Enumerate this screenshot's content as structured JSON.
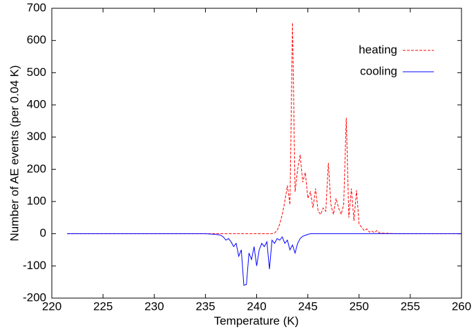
{
  "chart_data": {
    "type": "line",
    "x_label": "Temperature (K)",
    "y_label": "Number of AE events (per 0.04 K)",
    "x": [
      221.5,
      230,
      234,
      235,
      236,
      236.25,
      236.5,
      236.75,
      237,
      237.25,
      237.5,
      237.75,
      238,
      238.25,
      238.5,
      238.75,
      239,
      239.25,
      239.5,
      239.75,
      240,
      240.25,
      240.5,
      240.75,
      241,
      241.25,
      241.5,
      241.75,
      242,
      242.25,
      242.5,
      242.75,
      243,
      243.25,
      243.5,
      243.75,
      244,
      244.25,
      244.5,
      244.75,
      245,
      245.25,
      245.5,
      245.75,
      246,
      246.25,
      246.5,
      246.75,
      247,
      247.25,
      247.5,
      247.75,
      248,
      248.25,
      248.5,
      248.75,
      249,
      249.25,
      249.5,
      249.75,
      250,
      250.25,
      250.5,
      250.75,
      251,
      251.25,
      251.5,
      251.75,
      252,
      254,
      257,
      260
    ],
    "series": [
      {
        "name": "heating",
        "color": "#ff0000",
        "line_style": "dashed",
        "values": [
          0,
          0,
          0,
          0,
          0,
          0,
          0,
          0,
          0,
          0,
          0,
          0,
          0,
          0,
          0,
          0,
          0,
          0,
          0,
          0,
          0,
          0,
          0,
          0,
          0,
          0,
          0,
          2,
          10,
          30,
          60,
          100,
          150,
          90,
          655,
          130,
          200,
          245,
          160,
          190,
          110,
          130,
          80,
          140,
          70,
          60,
          80,
          70,
          220,
          90,
          60,
          110,
          80,
          60,
          90,
          360,
          50,
          140,
          40,
          135,
          30,
          20,
          10,
          15,
          5,
          8,
          3,
          10,
          2,
          0,
          0,
          0
        ]
      },
      {
        "name": "cooling",
        "color": "#0000ff",
        "line_style": "solid",
        "values": [
          0,
          0,
          0,
          0,
          -2,
          -3,
          -5,
          -10,
          -20,
          -15,
          -25,
          -40,
          -30,
          -70,
          -50,
          -160,
          -158,
          -60,
          -80,
          -40,
          -100,
          -50,
          -30,
          -40,
          -25,
          -110,
          -20,
          -30,
          -15,
          -20,
          -10,
          -30,
          -20,
          -50,
          -35,
          -60,
          -30,
          -15,
          -8,
          -5,
          -2,
          0,
          0,
          0,
          0,
          0,
          0,
          0,
          0,
          0,
          0,
          0,
          0,
          0,
          0,
          0,
          0,
          0,
          0,
          0,
          0,
          0,
          0,
          0,
          0,
          0,
          0,
          0,
          0,
          0,
          0,
          0
        ]
      }
    ],
    "xlim": [
      220,
      260
    ],
    "xticks": [
      220,
      225,
      230,
      235,
      240,
      245,
      250,
      255,
      260
    ],
    "ylim": [
      -200,
      700
    ],
    "yticks": [
      -200,
      -100,
      0,
      100,
      200,
      300,
      400,
      500,
      600,
      700
    ],
    "grid": false,
    "legend": "upper right"
  }
}
